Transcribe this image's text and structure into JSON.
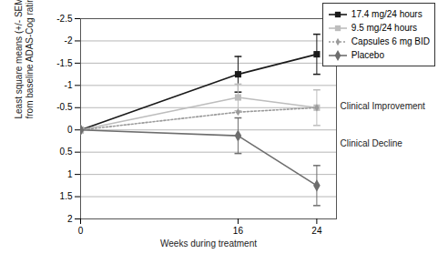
{
  "chart_data": {
    "type": "line",
    "xlabel": "Weeks during treatment",
    "ylabel": "Least square means (+/- SEM) change\nfrom baseline ADAS-Cog rating",
    "x": [
      0,
      16,
      24
    ],
    "xlim": [
      0,
      26
    ],
    "xticks": [
      0,
      16,
      24
    ],
    "ylim": [
      2,
      -2.5
    ],
    "yticks": [
      -2.5,
      -2,
      -1.5,
      -1,
      -0.5,
      0,
      0.5,
      1,
      1.5,
      2
    ],
    "grid": true,
    "legend": "top-right",
    "annotations": [
      "Clinical Improvement",
      "Clinical Decline"
    ],
    "series": [
      {
        "name": "17.4 mg/24 hours",
        "color": "#1a1a1a",
        "marker": "square",
        "line_style": "solid",
        "values": [
          0,
          -1.25,
          -1.7
        ],
        "sem": [
          null,
          0.4,
          0.45
        ]
      },
      {
        "name": "9.5 mg/24 hours",
        "color": "#bdbdbd",
        "marker": "square",
        "line_style": "solid",
        "values": [
          0,
          -0.73,
          -0.5
        ],
        "sem": [
          null,
          0.3,
          0.4
        ]
      },
      {
        "name": "Capsules 6 mg BID",
        "color": "#9a9a9a",
        "marker": "diamond",
        "line_style": "dotted",
        "values": [
          0,
          -0.4,
          -0.5
        ],
        "sem": [
          null,
          null,
          null
        ]
      },
      {
        "name": "Placebo",
        "color": "#6e6e6e",
        "marker": "diamond",
        "line_style": "solid",
        "values": [
          0,
          0.13,
          1.25
        ],
        "sem": [
          null,
          0.4,
          0.45
        ]
      }
    ]
  }
}
